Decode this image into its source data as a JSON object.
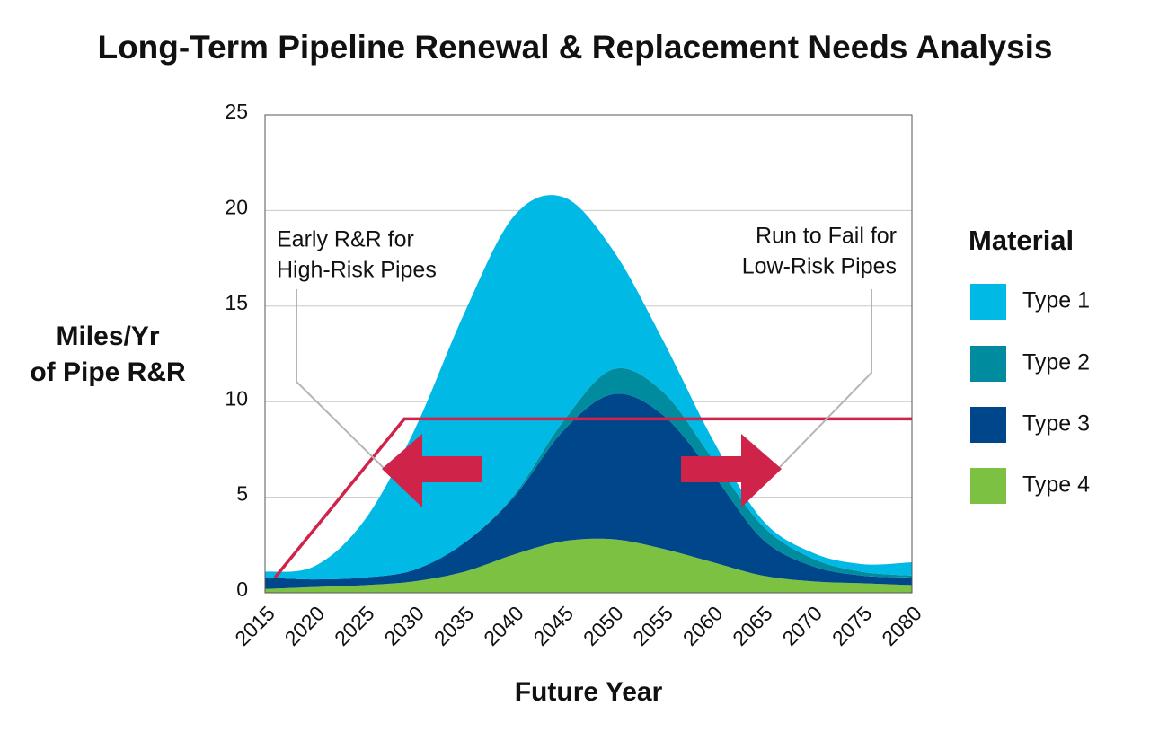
{
  "chart_data": {
    "type": "stacked-area",
    "title": "Long-Term Pipeline Renewal & Replacement Needs Analysis",
    "ylabel": [
      "Miles/Yr",
      "of Pipe R&R"
    ],
    "xlabel": "Future Year",
    "legend_title": "Material",
    "x": [
      2015,
      2020,
      2025,
      2030,
      2035,
      2040,
      2045,
      2050,
      2055,
      2060,
      2065,
      2070,
      2075,
      2080
    ],
    "xlim": [
      2015,
      2080
    ],
    "xticks": [
      2015,
      2020,
      2025,
      2030,
      2035,
      2040,
      2045,
      2050,
      2055,
      2060,
      2065,
      2070,
      2075,
      2080
    ],
    "ylim": [
      0,
      25
    ],
    "yticks": [
      0,
      5,
      10,
      15,
      20,
      25
    ],
    "grid": true,
    "series": [
      {
        "name": "Type 4",
        "color": "#7dc142",
        "values": [
          0.2,
          0.3,
          0.4,
          0.6,
          1.1,
          2.0,
          2.7,
          2.8,
          2.3,
          1.6,
          0.9,
          0.6,
          0.5,
          0.4
        ]
      },
      {
        "name": "Type 3",
        "color": "#00468b",
        "values": [
          0.6,
          0.4,
          0.4,
          0.6,
          1.5,
          3.0,
          5.8,
          7.6,
          7.0,
          4.6,
          1.9,
          0.8,
          0.4,
          0.4
        ]
      },
      {
        "name": "Type 2",
        "color": "#008c9e",
        "values": [
          0,
          0,
          0,
          0,
          0,
          0.1,
          0.5,
          1.3,
          1.2,
          0.8,
          0.7,
          0.4,
          0.2,
          0.1
        ]
      },
      {
        "name": "Type 1",
        "color": "#00b9e4",
        "values": [
          0.3,
          0.7,
          3.0,
          7.3,
          12.0,
          14.6,
          11.7,
          6.2,
          2.7,
          1.0,
          0.3,
          0.3,
          0.4,
          0.7
        ]
      }
    ],
    "capacity_line": {
      "color": "#d0234a",
      "x": [
        2016,
        2029,
        2080
      ],
      "values": [
        0.8,
        9.1,
        9.1
      ]
    },
    "annotations": [
      {
        "lines": [
          "Early R&R for",
          "High-Risk Pipes"
        ]
      },
      {
        "lines": [
          "Run to Fail for",
          "Low-Risk Pipes"
        ]
      }
    ]
  }
}
